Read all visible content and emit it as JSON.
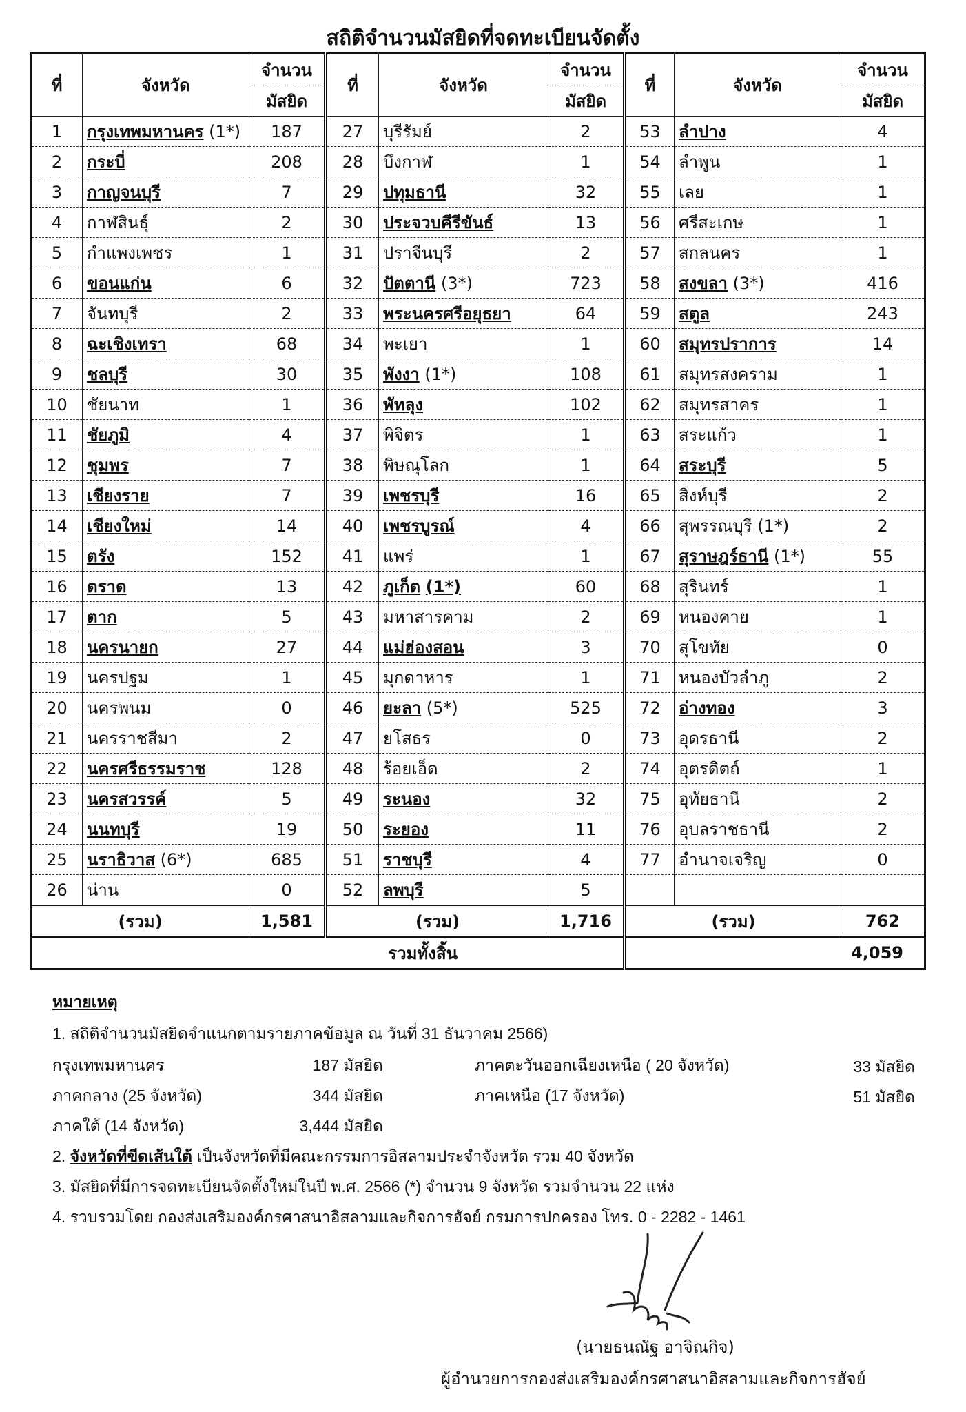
{
  "title": "สถิติจำนวนมัสยิดที่จดทะเบียนจัดตั้ง",
  "headers": {
    "no": "ที่",
    "province": "จังหวัด",
    "count_top": "จำนวน",
    "count_bottom": "มัสยิด"
  },
  "blocks": [
    {
      "rows": [
        {
          "no": "1",
          "name": "กรุงเทพมหานคร",
          "note": "(1*)",
          "count": "187",
          "u": true
        },
        {
          "no": "2",
          "name": "กระบี่",
          "note": "",
          "count": "208",
          "u": true
        },
        {
          "no": "3",
          "name": "กาญจนบุรี",
          "note": "",
          "count": "7",
          "u": true
        },
        {
          "no": "4",
          "name": "กาฬสินธุ์",
          "note": "",
          "count": "2",
          "u": false
        },
        {
          "no": "5",
          "name": "กำแพงเพชร",
          "note": "",
          "count": "1",
          "u": false
        },
        {
          "no": "6",
          "name": "ขอนแก่น",
          "note": "",
          "count": "6",
          "u": true
        },
        {
          "no": "7",
          "name": "จันทบุรี",
          "note": "",
          "count": "2",
          "u": false
        },
        {
          "no": "8",
          "name": "ฉะเชิงเทรา",
          "note": "",
          "count": "68",
          "u": true
        },
        {
          "no": "9",
          "name": "ชลบุรี",
          "note": "",
          "count": "30",
          "u": true
        },
        {
          "no": "10",
          "name": "ชัยนาท",
          "note": "",
          "count": "1",
          "u": false
        },
        {
          "no": "11",
          "name": "ชัยภูมิ",
          "note": "",
          "count": "4",
          "u": true
        },
        {
          "no": "12",
          "name": "ชุมพร",
          "note": "",
          "count": "7",
          "u": true
        },
        {
          "no": "13",
          "name": "เชียงราย",
          "note": "",
          "count": "7",
          "u": true
        },
        {
          "no": "14",
          "name": "เชียงใหม่",
          "note": "",
          "count": "14",
          "u": true
        },
        {
          "no": "15",
          "name": "ตรัง",
          "note": "",
          "count": "152",
          "u": true
        },
        {
          "no": "16",
          "name": "ตราด",
          "note": "",
          "count": "13",
          "u": true
        },
        {
          "no": "17",
          "name": "ตาก",
          "note": "",
          "count": "5",
          "u": true
        },
        {
          "no": "18",
          "name": "นครนายก",
          "note": "",
          "count": "27",
          "u": true
        },
        {
          "no": "19",
          "name": "นครปฐม",
          "note": "",
          "count": "1",
          "u": false
        },
        {
          "no": "20",
          "name": "นครพนม",
          "note": "",
          "count": "0",
          "u": false
        },
        {
          "no": "21",
          "name": "นครราชสีมา",
          "note": "",
          "count": "2",
          "u": false
        },
        {
          "no": "22",
          "name": "นครศรีธรรมราช",
          "note": "",
          "count": "128",
          "u": true
        },
        {
          "no": "23",
          "name": "นครสวรรค์",
          "note": "",
          "count": "5",
          "u": true
        },
        {
          "no": "24",
          "name": "นนทบุรี",
          "note": "",
          "count": "19",
          "u": true
        },
        {
          "no": "25",
          "name": "นราธิวาส",
          "note": "(6*)",
          "count": "685",
          "u": true
        },
        {
          "no": "26",
          "name": "น่าน",
          "note": "",
          "count": "0",
          "u": false
        }
      ],
      "sum_label": "(รวม)",
      "sum": "1,581"
    },
    {
      "rows": [
        {
          "no": "27",
          "name": "บุรีรัมย์",
          "note": "",
          "count": "2",
          "u": false
        },
        {
          "no": "28",
          "name": "บึงกาฬ",
          "note": "",
          "count": "1",
          "u": false
        },
        {
          "no": "29",
          "name": "ปทุมธานี",
          "note": "",
          "count": "32",
          "u": true
        },
        {
          "no": "30",
          "name": "ประจวบคีรีขันธ์",
          "note": "",
          "count": "13",
          "u": true
        },
        {
          "no": "31",
          "name": "ปราจีนบุรี",
          "note": "",
          "count": "2",
          "u": false
        },
        {
          "no": "32",
          "name": "ปัตตานี",
          "note": "(3*)",
          "count": "723",
          "u": true
        },
        {
          "no": "33",
          "name": "พระนครศรีอยุธยา",
          "note": "",
          "count": "64",
          "u": true
        },
        {
          "no": "34",
          "name": "พะเยา",
          "note": "",
          "count": "1",
          "u": false
        },
        {
          "no": "35",
          "name": "พังงา",
          "note": "(1*)",
          "count": "108",
          "u": true
        },
        {
          "no": "36",
          "name": "พัทลุง",
          "note": "",
          "count": "102",
          "u": true
        },
        {
          "no": "37",
          "name": "พิจิตร",
          "note": "",
          "count": "1",
          "u": false
        },
        {
          "no": "38",
          "name": "พิษณุโลก",
          "note": "",
          "count": "1",
          "u": false
        },
        {
          "no": "39",
          "name": "เพชรบุรี",
          "note": "",
          "count": "16",
          "u": true
        },
        {
          "no": "40",
          "name": "เพชรบูรณ์",
          "note": "",
          "count": "4",
          "u": true
        },
        {
          "no": "41",
          "name": "แพร่",
          "note": "",
          "count": "1",
          "u": false
        },
        {
          "no": "42",
          "name": "ภูเก็ต",
          "note": "(1*)",
          "count": "60",
          "u": true
        },
        {
          "no": "43",
          "name": "มหาสารคาม",
          "note": "",
          "count": "2",
          "u": false
        },
        {
          "no": "44",
          "name": "แม่ฮ่องสอน",
          "note": "",
          "count": "3",
          "u": true
        },
        {
          "no": "45",
          "name": "มุกดาหาร",
          "note": "",
          "count": "1",
          "u": false
        },
        {
          "no": "46",
          "name": "ยะลา",
          "note": "(5*)",
          "count": "525",
          "u": true
        },
        {
          "no": "47",
          "name": "ยโสธร",
          "note": "",
          "count": "0",
          "u": false
        },
        {
          "no": "48",
          "name": "ร้อยเอ็ด",
          "note": "",
          "count": "2",
          "u": false
        },
        {
          "no": "49",
          "name": "ระนอง",
          "note": "",
          "count": "32",
          "u": true
        },
        {
          "no": "50",
          "name": "ระยอง",
          "note": "",
          "count": "11",
          "u": true
        },
        {
          "no": "51",
          "name": "ราชบุรี",
          "note": "",
          "count": "4",
          "u": true
        },
        {
          "no": "52",
          "name": "ลพบุรี",
          "note": "",
          "count": "5",
          "u": true
        }
      ],
      "sum_label": "(รวม)",
      "sum": "1,716"
    },
    {
      "rows": [
        {
          "no": "53",
          "name": "ลำปาง",
          "note": "",
          "count": "4",
          "u": true
        },
        {
          "no": "54",
          "name": "ลำพูน",
          "note": "",
          "count": "1",
          "u": false
        },
        {
          "no": "55",
          "name": "เลย",
          "note": "",
          "count": "1",
          "u": false
        },
        {
          "no": "56",
          "name": "ศรีสะเกษ",
          "note": "",
          "count": "1",
          "u": false
        },
        {
          "no": "57",
          "name": "สกลนคร",
          "note": "",
          "count": "1",
          "u": false
        },
        {
          "no": "58",
          "name": "สงขลา",
          "note": "(3*)",
          "count": "416",
          "u": true
        },
        {
          "no": "59",
          "name": "สตูล",
          "note": "",
          "count": "243",
          "u": true
        },
        {
          "no": "60",
          "name": "สมุทรปราการ",
          "note": "",
          "count": "14",
          "u": true
        },
        {
          "no": "61",
          "name": "สมุทรสงคราม",
          "note": "",
          "count": "1",
          "u": false
        },
        {
          "no": "62",
          "name": "สมุทรสาคร",
          "note": "",
          "count": "1",
          "u": false
        },
        {
          "no": "63",
          "name": "สระแก้ว",
          "note": "",
          "count": "1",
          "u": false
        },
        {
          "no": "64",
          "name": "สระบุรี",
          "note": "",
          "count": "5",
          "u": true
        },
        {
          "no": "65",
          "name": "สิงห์บุรี",
          "note": "",
          "count": "2",
          "u": false
        },
        {
          "no": "66",
          "name": "สุพรรณบุรี",
          "note": "(1*)",
          "count": "2",
          "u": false
        },
        {
          "no": "67",
          "name": "สุราษฎร์ธานี",
          "note": "(1*)",
          "count": "55",
          "u": true
        },
        {
          "no": "68",
          "name": "สุรินทร์",
          "note": "",
          "count": "1",
          "u": false
        },
        {
          "no": "69",
          "name": "หนองคาย",
          "note": "",
          "count": "1",
          "u": false
        },
        {
          "no": "70",
          "name": "สุโขทัย",
          "note": "",
          "count": "0",
          "u": false
        },
        {
          "no": "71",
          "name": "หนองบัวลำภู",
          "note": "",
          "count": "2",
          "u": false
        },
        {
          "no": "72",
          "name": "อ่างทอง",
          "note": "",
          "count": "3",
          "u": true
        },
        {
          "no": "73",
          "name": "อุดรธานี",
          "note": "",
          "count": "2",
          "u": false
        },
        {
          "no": "74",
          "name": "อุตรดิตถ์",
          "note": "",
          "count": "1",
          "u": false
        },
        {
          "no": "75",
          "name": "อุทัยธานี",
          "note": "",
          "count": "2",
          "u": false
        },
        {
          "no": "76",
          "name": "อุบลราชธานี",
          "note": "",
          "count": "2",
          "u": false
        },
        {
          "no": "77",
          "name": "อำนาจเจริญ",
          "note": "",
          "count": "0",
          "u": false
        },
        {
          "no": "",
          "name": "",
          "note": "",
          "count": "",
          "u": false
        }
      ],
      "sum_label": "(รวม)",
      "sum": "762"
    }
  ],
  "grand_total_label": "รวมทั้งสิ้น",
  "grand_total": "4,059",
  "notes": {
    "heading": "หมายเหตุ",
    "line1": "1. สถิติจำนวนมัสยิดจำแนกตามรายภาคข้อมูล  ณ วันที่ 31 ธันวาคม  2566)",
    "regions": [
      {
        "label": "กรุงเทพมหานคร",
        "value": "187 มัสยิด"
      },
      {
        "label": "ภาคกลาง (25 จังหวัด)",
        "value": "344 มัสยิด"
      },
      {
        "label": "ภาคใต้ (14 จังหวัด)",
        "value": "3,444 มัสยิด"
      },
      {
        "label": "ภาคตะวันออกเฉียงเหนือ ( 20 จังหวัด)",
        "value": "33 มัสยิด"
      },
      {
        "label": "ภาคเหนือ (17 จังหวัด)",
        "value": "51 มัสยิด"
      }
    ],
    "line2_prefix": "2. ",
    "line2_underlined": "จังหวัดที่ขีดเส้นใต้",
    "line2_rest": "  เป็นจังหวัดที่มีคณะกรรมการอิสลามประจำจังหวัด รวม 40 จังหวัด",
    "line3": "3. มัสยิดที่มีการจดทะเบียนจัดตั้งใหม่ในปี พ.ศ. 2566 (*) จำนวน 9 จังหวัด รวมจำนวน 22 แห่ง",
    "line4": "4. รวบรวมโดย  กองส่งเสริมองค์กรศาสนาอิสลามและกิจการฮัจย์ กรมการปกครอง โทร. 0 - 2282 - 1461"
  },
  "signer": {
    "name": "(นายธนณัฐ  อาจิณกิจ)",
    "position": "ผู้อำนวยการกองส่งเสริมองค์กรศาสนาอิสลามและกิจการฮัจย์"
  }
}
